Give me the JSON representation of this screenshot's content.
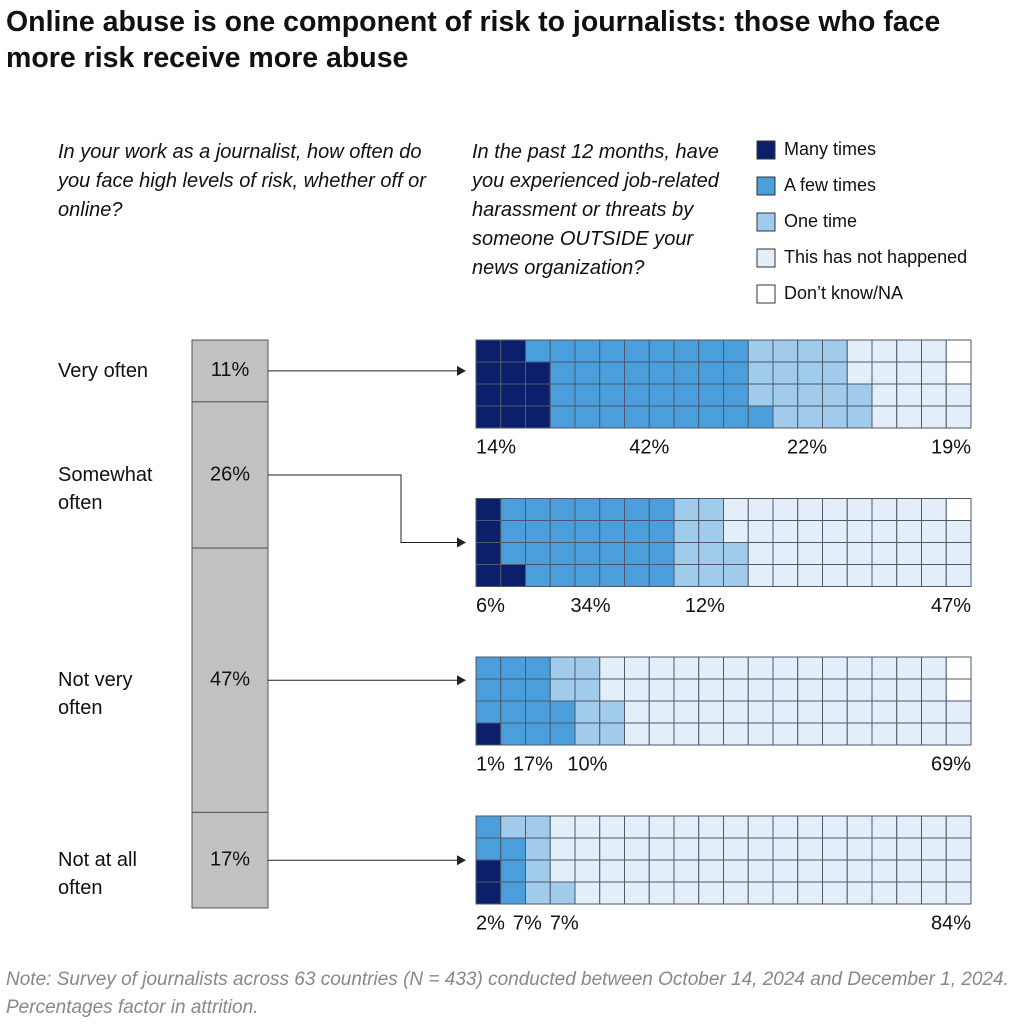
{
  "chart_data": {
    "type": "waffle",
    "title": "Online abuse is one component of risk to journalists: those who face more risk receive more abuse",
    "left_question": "In your work as a journalist, how often do you face high levels of risk, whether off or online?",
    "right_question": "In the past 12 months, have you experienced job-related harassment or threats by someone OUTSIDE your news organization?",
    "note": "Note: Survey of journalists across 63 countries (N = 433) conducted between October 14, 2024 and December 1, 2024. Percentages factor in attrition.",
    "categories": [
      "Very often",
      "Somewhat often",
      "Not very often",
      "Not at all often"
    ],
    "risk": {
      "values": [
        11,
        26,
        47,
        17
      ],
      "value_labels": [
        "11%",
        "26%",
        "47%",
        "17%"
      ],
      "color": "#c1c1c3"
    },
    "series": [
      {
        "name": "Many times",
        "color": "#0b1f6b",
        "values": [
          14,
          6,
          1,
          2
        ],
        "value_labels": [
          "14%",
          "6%",
          "1%",
          "2%"
        ]
      },
      {
        "name": "A few times",
        "color": "#4a9edb",
        "values": [
          42,
          34,
          17,
          7
        ],
        "value_labels": [
          "42%",
          "34%",
          "17%",
          "7%"
        ]
      },
      {
        "name": "One time",
        "color": "#a0cbeb",
        "values": [
          22,
          12,
          10,
          7
        ],
        "value_labels": [
          "22%",
          "12%",
          "10%",
          "7%"
        ]
      },
      {
        "name": "This has not happened",
        "color": "#e4eef9",
        "values": [
          19,
          47,
          69,
          84
        ],
        "value_labels": [
          "19%",
          "47%",
          "69%",
          "84%"
        ]
      },
      {
        "name": "Don’t know/NA",
        "color": "#ffffff",
        "values": [
          3,
          1,
          3,
          0
        ]
      }
    ]
  }
}
